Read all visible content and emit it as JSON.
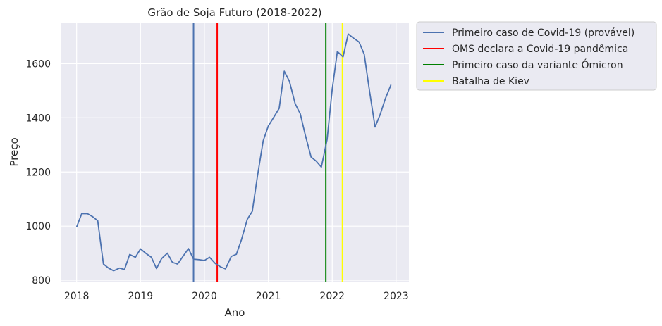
{
  "chart_data": {
    "type": "line",
    "title": "Grão de Soja Futuro (2018-2022)",
    "xlabel": "Ano",
    "ylabel": "Preço",
    "xlim": [
      2017.75,
      2023.2
    ],
    "ylim": [
      795,
      1752
    ],
    "x_ticks": [
      2018,
      2019,
      2020,
      2021,
      2022,
      2023
    ],
    "y_ticks": [
      800,
      1000,
      1200,
      1400,
      1600
    ],
    "grid": true,
    "legend_position": "outside-top-right",
    "series": [
      {
        "name": "",
        "color": "#4c72b0",
        "x": [
          2018.0,
          2018.08,
          2018.17,
          2018.25,
          2018.33,
          2018.42,
          2018.5,
          2018.58,
          2018.67,
          2018.75,
          2018.83,
          2018.92,
          2019.0,
          2019.08,
          2019.17,
          2019.25,
          2019.33,
          2019.42,
          2019.5,
          2019.58,
          2019.67,
          2019.75,
          2019.83,
          2019.92,
          2020.0,
          2020.08,
          2020.17,
          2020.25,
          2020.33,
          2020.42,
          2020.5,
          2020.58,
          2020.67,
          2020.75,
          2020.83,
          2020.92,
          2021.0,
          2021.08,
          2021.17,
          2021.25,
          2021.33,
          2021.42,
          2021.5,
          2021.58,
          2021.67,
          2021.75,
          2021.83,
          2021.92,
          2022.0,
          2022.08,
          2022.17,
          2022.25,
          2022.33,
          2022.42,
          2022.5,
          2022.58,
          2022.67,
          2022.75,
          2022.83,
          2022.92
        ],
        "y": [
          997,
          1046,
          1046,
          1035,
          1020,
          860,
          845,
          835,
          845,
          840,
          895,
          885,
          916,
          900,
          885,
          843,
          880,
          900,
          866,
          860,
          890,
          917,
          878,
          876,
          873,
          885,
          862,
          850,
          842,
          888,
          896,
          950,
          1025,
          1055,
          1185,
          1315,
          1370,
          1400,
          1435,
          1572,
          1535,
          1452,
          1415,
          1335,
          1255,
          1240,
          1218,
          1320,
          1505,
          1645,
          1625,
          1710,
          1695,
          1680,
          1635,
          1505,
          1366,
          1412,
          1470,
          1522
        ]
      }
    ],
    "vlines": [
      {
        "x": 2019.83,
        "color": "#4c72b0"
      },
      {
        "x": 2020.2,
        "color": "#ff0000"
      },
      {
        "x": 2021.9,
        "color": "#008000"
      },
      {
        "x": 2022.16,
        "color": "#ffff00"
      }
    ],
    "legend": [
      {
        "label": "Primeiro caso de Covid-19 (provável)",
        "color": "#4c72b0"
      },
      {
        "label": "OMS declara a Covid-19 pandêmica",
        "color": "#ff0000"
      },
      {
        "label": "Primeiro caso da variante Ómicron",
        "color": "#008000"
      },
      {
        "label": "Batalha de Kiev",
        "color": "#ffff00"
      }
    ]
  }
}
